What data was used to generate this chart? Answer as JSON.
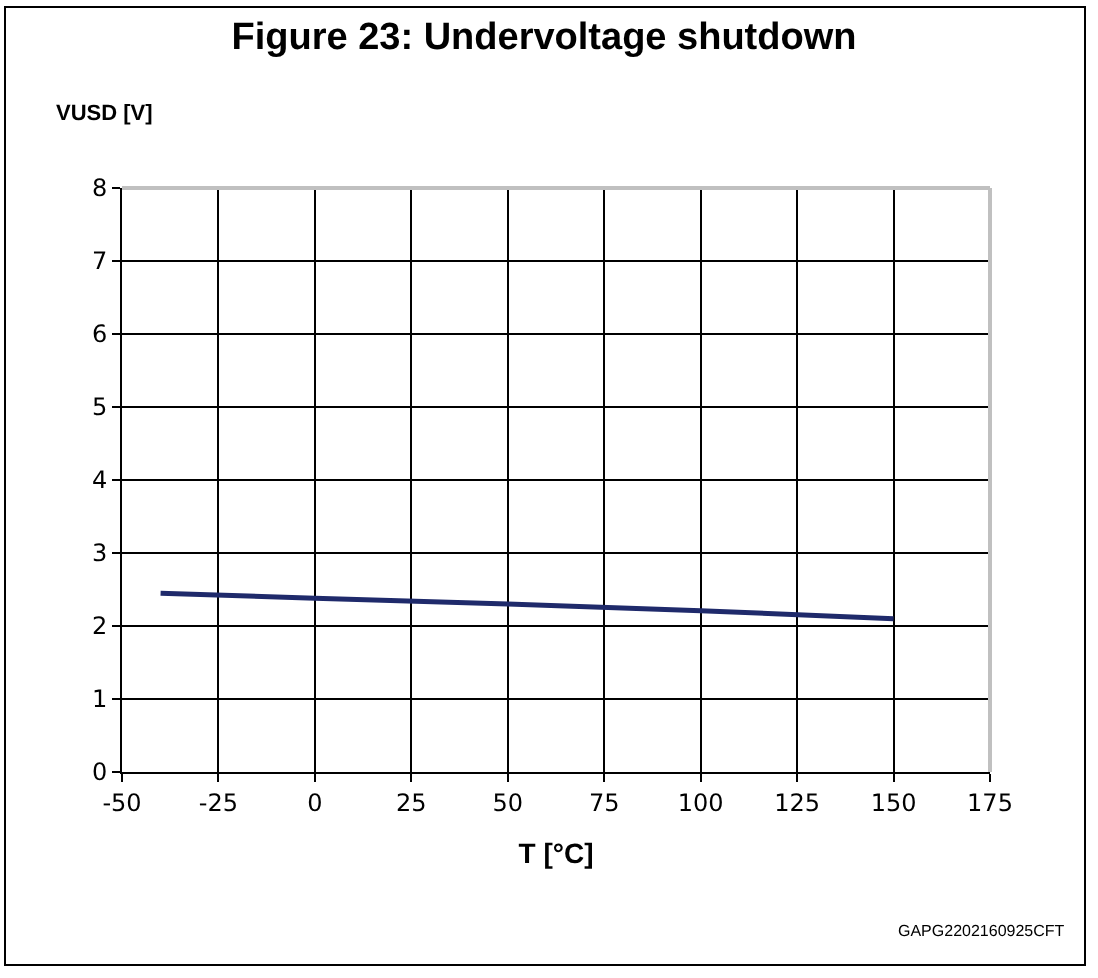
{
  "chart_data": {
    "type": "line",
    "title": "Figure 23: Undervoltage shutdown",
    "xlabel": "T [°C]",
    "ylabel": "VUSD [V]",
    "x": [
      -40,
      0,
      50,
      100,
      150
    ],
    "series": [
      {
        "color": "#1f2a6b",
        "values": [
          2.45,
          2.38,
          2.3,
          2.21,
          2.1
        ]
      }
    ],
    "xlim": [
      -50,
      175
    ],
    "xticks": [
      -50,
      -25,
      0,
      25,
      50,
      75,
      100,
      125,
      150,
      175
    ],
    "ylim": [
      0,
      8
    ],
    "yticks": [
      0,
      1,
      2,
      3,
      4,
      5,
      6,
      7,
      8
    ],
    "grid": true,
    "marker": "none",
    "line_style": "solid",
    "annotations": [
      "GAPG2202160925CFT"
    ]
  }
}
